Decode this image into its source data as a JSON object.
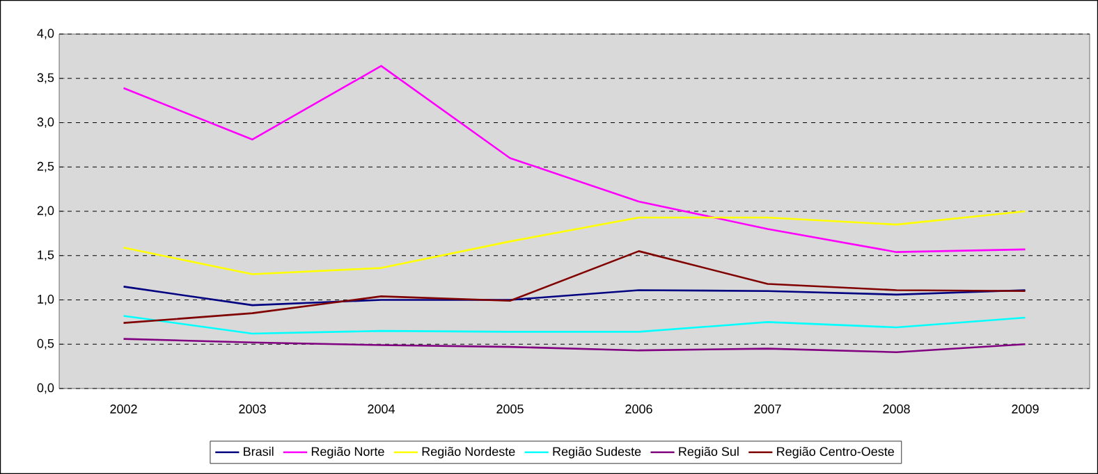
{
  "chart_data": {
    "type": "line",
    "categories": [
      "2002",
      "2003",
      "2004",
      "2005",
      "2006",
      "2007",
      "2008",
      "2009"
    ],
    "series": [
      {
        "name": "Brasil",
        "color": "#000080",
        "values": [
          1.15,
          0.94,
          1.0,
          1.0,
          1.11,
          1.1,
          1.06,
          1.11
        ]
      },
      {
        "name": "Região Norte",
        "color": "#ff00ff",
        "values": [
          3.39,
          2.81,
          3.64,
          2.6,
          2.11,
          1.8,
          1.54,
          1.57
        ]
      },
      {
        "name": "Região Nordeste",
        "color": "#ffff00",
        "values": [
          1.59,
          1.29,
          1.36,
          1.66,
          1.93,
          1.93,
          1.85,
          2.0
        ]
      },
      {
        "name": "Região Sudeste",
        "color": "#00ffff",
        "values": [
          0.82,
          0.62,
          0.65,
          0.64,
          0.64,
          0.75,
          0.69,
          0.8
        ]
      },
      {
        "name": "Região Sul",
        "color": "#800080",
        "values": [
          0.56,
          0.52,
          0.49,
          0.47,
          0.43,
          0.45,
          0.41,
          0.5
        ]
      },
      {
        "name": "Região Centro-Oeste",
        "color": "#800000",
        "values": [
          0.74,
          0.85,
          1.04,
          0.99,
          1.55,
          1.18,
          1.11,
          1.1
        ]
      }
    ],
    "ylim": [
      0,
      4
    ],
    "yticks": [
      {
        "value": 0,
        "label": "0,0"
      },
      {
        "value": 0.5,
        "label": "0,5"
      },
      {
        "value": 1,
        "label": "1,0"
      },
      {
        "value": 1.5,
        "label": "1,5"
      },
      {
        "value": 2,
        "label": "2,0"
      },
      {
        "value": 2.5,
        "label": "2,5"
      },
      {
        "value": 3,
        "label": "3,0"
      },
      {
        "value": 3.5,
        "label": "3,5"
      },
      {
        "value": 4,
        "label": "4,0"
      }
    ],
    "grid": "y",
    "legend": "bottom",
    "marker": "none",
    "line_style": "solid"
  }
}
